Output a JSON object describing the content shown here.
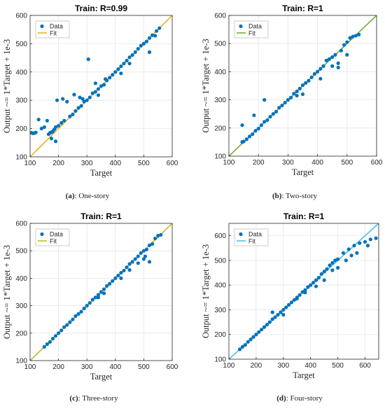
{
  "colors": {
    "data_marker": "#0072BD",
    "grid": "#e6e6e6",
    "axis": "#262626"
  },
  "legend": {
    "data_label": "Data",
    "fit_label": "Fit"
  },
  "captions": [
    {
      "letter": "(a)",
      "text": ": One-story"
    },
    {
      "letter": "(b)",
      "text": ": Two-story"
    },
    {
      "letter": "(c)",
      "text": ": Three-story"
    },
    {
      "letter": "(d)",
      "text": ": Four-story"
    }
  ],
  "chart_data": [
    {
      "type": "scatter",
      "title": "Train: R=0.99",
      "xlabel": "Target",
      "ylabel": "Output ~= 1*Target + 1e-3",
      "xlim": [
        100,
        600
      ],
      "ylim": [
        100,
        600
      ],
      "xticks": [
        100,
        200,
        300,
        400,
        500,
        600
      ],
      "yticks": [
        100,
        200,
        300,
        400,
        500,
        600
      ],
      "grid": true,
      "legend_position": "top-left",
      "fit_color": "#EDB120",
      "fit_line": {
        "slope": 1,
        "intercept": 0.001
      },
      "series": [
        {
          "name": "Data",
          "points": [
            [
              105,
              185
            ],
            [
              110,
              183
            ],
            [
              115,
              184
            ],
            [
              120,
              186
            ],
            [
              130,
              232
            ],
            [
              140,
              200
            ],
            [
              150,
              205
            ],
            [
              160,
              228
            ],
            [
              165,
              180
            ],
            [
              170,
              185
            ],
            [
              175,
              187
            ],
            [
              180,
              190
            ],
            [
              185,
              197
            ],
            [
              190,
              205
            ],
            [
              195,
              300
            ],
            [
              200,
              210
            ],
            [
              210,
              220
            ],
            [
              215,
              305
            ],
            [
              220,
              228
            ],
            [
              230,
              295
            ],
            [
              240,
              243
            ],
            [
              250,
              250
            ],
            [
              255,
              320
            ],
            [
              260,
              262
            ],
            [
              270,
              273
            ],
            [
              280,
              280
            ],
            [
              290,
              295
            ],
            [
              300,
              300
            ],
            [
              310,
              310
            ],
            [
              320,
              325
            ],
            [
              330,
              330
            ],
            [
              340,
              340
            ],
            [
              350,
              350
            ],
            [
              360,
              355
            ],
            [
              365,
              375
            ],
            [
              370,
              370
            ],
            [
              380,
              380
            ],
            [
              390,
              390
            ],
            [
              400,
              400
            ],
            [
              410,
              410
            ],
            [
              420,
              420
            ],
            [
              430,
              430
            ],
            [
              440,
              440
            ],
            [
              450,
              452
            ],
            [
              460,
              460
            ],
            [
              470,
              470
            ],
            [
              480,
              482
            ],
            [
              490,
              493
            ],
            [
              500,
              500
            ],
            [
              510,
              508
            ],
            [
              520,
              520
            ],
            [
              530,
              530
            ],
            [
              540,
              528
            ],
            [
              545,
              545
            ],
            [
              555,
              555
            ],
            [
              305,
              445
            ],
            [
              275,
              310
            ],
            [
              285,
              305
            ],
            [
              330,
              360
            ],
            [
              340,
              318
            ],
            [
              420,
              395
            ],
            [
              450,
              430
            ],
            [
              520,
              470
            ],
            [
              175,
              165
            ],
            [
              190,
              155
            ]
          ]
        }
      ]
    },
    {
      "type": "scatter",
      "title": "Train: R=1",
      "xlabel": "Target",
      "ylabel": "Output ~= 1*Target + 1e-3",
      "xlim": [
        100,
        600
      ],
      "ylim": [
        100,
        600
      ],
      "xticks": [
        100,
        200,
        300,
        400,
        500,
        600
      ],
      "yticks": [
        100,
        200,
        300,
        400,
        500,
        600
      ],
      "grid": true,
      "legend_position": "top-left",
      "fit_color": "#77AC30",
      "fit_line": {
        "slope": 1,
        "intercept": 0.001
      },
      "series": [
        {
          "name": "Data",
          "points": [
            [
              145,
              150
            ],
            [
              150,
              152
            ],
            [
              160,
              160
            ],
            [
              170,
              170
            ],
            [
              180,
              178
            ],
            [
              190,
              190
            ],
            [
              200,
              198
            ],
            [
              210,
              210
            ],
            [
              220,
              222
            ],
            [
              230,
              228
            ],
            [
              240,
              240
            ],
            [
              250,
              250
            ],
            [
              260,
              258
            ],
            [
              270,
              272
            ],
            [
              280,
              280
            ],
            [
              290,
              290
            ],
            [
              300,
              300
            ],
            [
              310,
              308
            ],
            [
              320,
              322
            ],
            [
              330,
              330
            ],
            [
              340,
              340
            ],
            [
              350,
              352
            ],
            [
              360,
              360
            ],
            [
              370,
              368
            ],
            [
              380,
              380
            ],
            [
              390,
              392
            ],
            [
              400,
              400
            ],
            [
              410,
              410
            ],
            [
              420,
              420
            ],
            [
              430,
              440
            ],
            [
              440,
              445
            ],
            [
              450,
              452
            ],
            [
              460,
              460
            ],
            [
              470,
              430
            ],
            [
              480,
              475
            ],
            [
              490,
              495
            ],
            [
              500,
              505
            ],
            [
              510,
              520
            ],
            [
              520,
              525
            ],
            [
              530,
              528
            ],
            [
              540,
              532
            ],
            [
              145,
              210
            ],
            [
              220,
              300
            ],
            [
              185,
              245
            ],
            [
              330,
              315
            ],
            [
              350,
              320
            ],
            [
              410,
              375
            ],
            [
              450,
              420
            ],
            [
              470,
              415
            ],
            [
              500,
              460
            ]
          ]
        }
      ]
    },
    {
      "type": "scatter",
      "title": "Train: R=1",
      "xlabel": "Target",
      "ylabel": "Output ~= 1*Target + 1e-3",
      "xlim": [
        100,
        600
      ],
      "ylim": [
        100,
        600
      ],
      "xticks": [
        100,
        200,
        300,
        400,
        500,
        600
      ],
      "yticks": [
        100,
        200,
        300,
        400,
        500,
        600
      ],
      "grid": true,
      "legend_position": "top-left",
      "fit_color": "#BDBD1E",
      "fit_line": {
        "slope": 1,
        "intercept": 0.001
      },
      "series": [
        {
          "name": "Data",
          "points": [
            [
              150,
              150
            ],
            [
              160,
              160
            ],
            [
              170,
              168
            ],
            [
              180,
              180
            ],
            [
              190,
              190
            ],
            [
              200,
              200
            ],
            [
              210,
              210
            ],
            [
              220,
              222
            ],
            [
              230,
              230
            ],
            [
              240,
              240
            ],
            [
              250,
              250
            ],
            [
              260,
              262
            ],
            [
              270,
              270
            ],
            [
              280,
              278
            ],
            [
              290,
              290
            ],
            [
              300,
              300
            ],
            [
              310,
              310
            ],
            [
              320,
              322
            ],
            [
              330,
              330
            ],
            [
              340,
              340
            ],
            [
              350,
              350
            ],
            [
              360,
              360
            ],
            [
              370,
              372
            ],
            [
              380,
              380
            ],
            [
              390,
              390
            ],
            [
              400,
              400
            ],
            [
              410,
              410
            ],
            [
              420,
              420
            ],
            [
              430,
              428
            ],
            [
              440,
              440
            ],
            [
              450,
              452
            ],
            [
              460,
              460
            ],
            [
              470,
              470
            ],
            [
              480,
              480
            ],
            [
              490,
              492
            ],
            [
              500,
              500
            ],
            [
              510,
              505
            ],
            [
              520,
              520
            ],
            [
              530,
              525
            ],
            [
              540,
              545
            ],
            [
              550,
              555
            ],
            [
              560,
              558
            ],
            [
              340,
              330
            ],
            [
              360,
              345
            ],
            [
              420,
              400
            ],
            [
              450,
              430
            ],
            [
              480,
              455
            ],
            [
              500,
              470
            ],
            [
              520,
              460
            ],
            [
              505,
              480
            ]
          ]
        }
      ]
    },
    {
      "type": "scatter",
      "title": "Train: R=1",
      "xlabel": "Target",
      "ylabel": "Output ~= 1*Target + 1e-3",
      "xlim": [
        100,
        650
      ],
      "ylim": [
        100,
        650
      ],
      "xticks": [
        100,
        200,
        300,
        400,
        500,
        600
      ],
      "yticks": [
        100,
        200,
        300,
        400,
        500,
        600
      ],
      "grid": true,
      "legend_position": "top-left",
      "fit_color": "#4DBEEE",
      "fit_line": {
        "slope": 1,
        "intercept": 0.001
      },
      "series": [
        {
          "name": "Data",
          "points": [
            [
              140,
              140
            ],
            [
              150,
              150
            ],
            [
              160,
              158
            ],
            [
              170,
              170
            ],
            [
              180,
              180
            ],
            [
              190,
              190
            ],
            [
              200,
              200
            ],
            [
              210,
              210
            ],
            [
              220,
              220
            ],
            [
              230,
              230
            ],
            [
              240,
              240
            ],
            [
              250,
              250
            ],
            [
              260,
              262
            ],
            [
              270,
              270
            ],
            [
              280,
              280
            ],
            [
              290,
              290
            ],
            [
              300,
              300
            ],
            [
              310,
              310
            ],
            [
              320,
              320
            ],
            [
              330,
              330
            ],
            [
              340,
              340
            ],
            [
              350,
              350
            ],
            [
              360,
              360
            ],
            [
              370,
              372
            ],
            [
              380,
              380
            ],
            [
              390,
              392
            ],
            [
              400,
              400
            ],
            [
              410,
              410
            ],
            [
              420,
              420
            ],
            [
              430,
              430
            ],
            [
              440,
              445
            ],
            [
              450,
              455
            ],
            [
              460,
              465
            ],
            [
              470,
              480
            ],
            [
              480,
              490
            ],
            [
              490,
              500
            ],
            [
              500,
              505
            ],
            [
              520,
              530
            ],
            [
              540,
              545
            ],
            [
              560,
              560
            ],
            [
              580,
              570
            ],
            [
              600,
              575
            ],
            [
              620,
              585
            ],
            [
              640,
              590
            ],
            [
              260,
              290
            ],
            [
              300,
              280
            ],
            [
              350,
              345
            ],
            [
              380,
              370
            ],
            [
              420,
              395
            ],
            [
              450,
              420
            ],
            [
              480,
              460
            ],
            [
              500,
              470
            ],
            [
              530,
              500
            ],
            [
              550,
              520
            ],
            [
              570,
              530
            ],
            [
              610,
              560
            ]
          ]
        }
      ]
    }
  ]
}
